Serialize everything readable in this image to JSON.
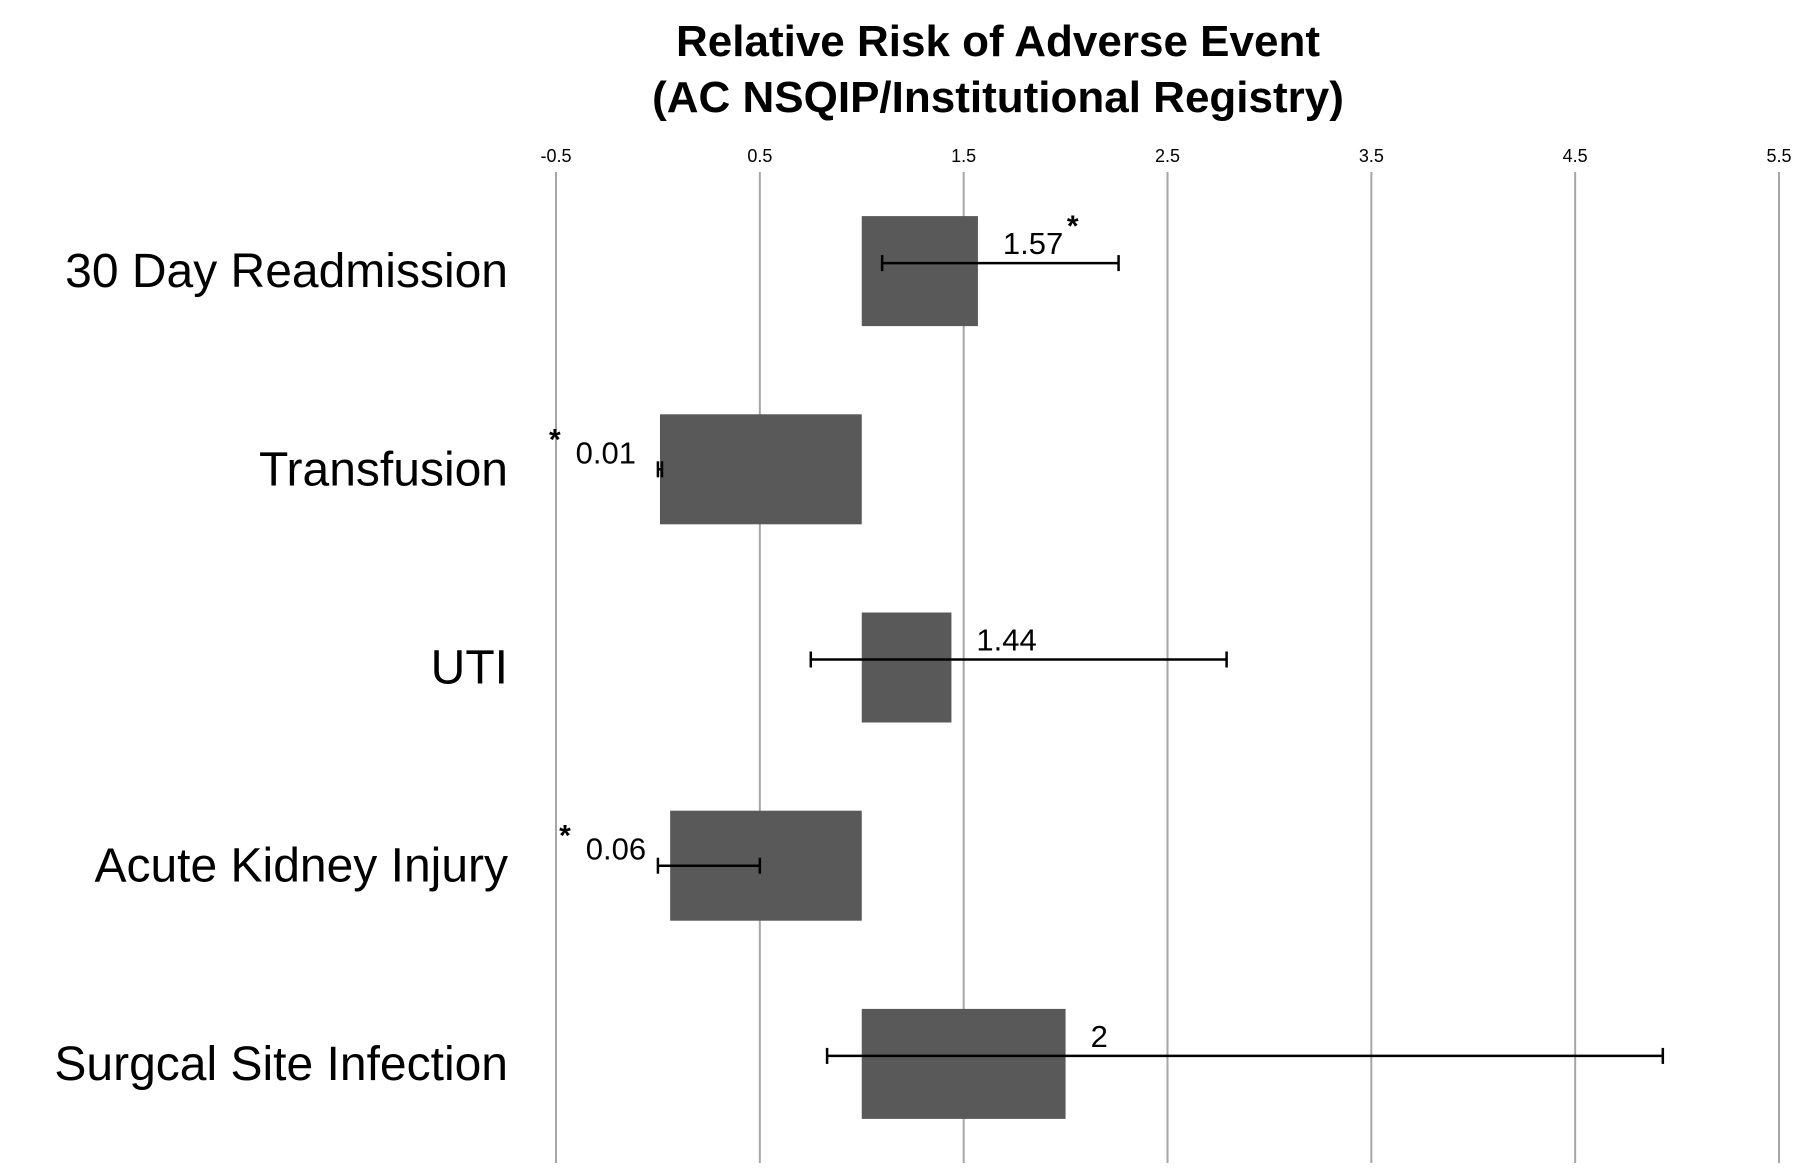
{
  "chart_data": {
    "type": "bar",
    "orientation": "horizontal",
    "title_line1": "Relative Risk of Adverse Event",
    "title_line2": "(AC NSQIP/Institutional Registry)",
    "xlabel": "",
    "ylabel": "",
    "xlim": [
      -0.5,
      5.5
    ],
    "baseline": 1,
    "x_ticks": [
      "-0.5",
      "0.5",
      "1.5",
      "2.5",
      "3.5",
      "4.5",
      "5.5"
    ],
    "x_tick_values": [
      -0.5,
      0.5,
      1.5,
      2.5,
      3.5,
      4.5,
      5.5
    ],
    "grid": "vertical",
    "bar_color": "#595959",
    "categories": [
      "30 Day Readmission",
      "Transfusion",
      "UTI",
      "Acute Kidney Injury",
      "Surgcal Site Infection"
    ],
    "values": [
      1.57,
      0.01,
      1.44,
      0.06,
      2
    ],
    "value_labels": [
      "1.57",
      "0.01",
      "1.44",
      "0.06",
      "2"
    ],
    "ci_low": [
      1.1,
      0.0,
      0.75,
      0.0,
      0.83
    ],
    "ci_high": [
      2.26,
      0.02,
      2.79,
      0.5,
      4.93
    ],
    "significant": [
      true,
      true,
      false,
      true,
      false
    ],
    "significance_marker": "*"
  }
}
